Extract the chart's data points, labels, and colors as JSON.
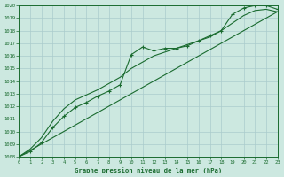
{
  "title": "Graphe pression niveau de la mer (hPa)",
  "xlim": [
    0,
    23
  ],
  "ylim": [
    1008,
    1020
  ],
  "yticks": [
    1008,
    1009,
    1010,
    1011,
    1012,
    1013,
    1014,
    1015,
    1016,
    1017,
    1018,
    1019,
    1020
  ],
  "xticks": [
    0,
    1,
    2,
    3,
    4,
    5,
    6,
    7,
    8,
    9,
    10,
    11,
    12,
    13,
    14,
    15,
    16,
    17,
    18,
    19,
    20,
    21,
    22,
    23
  ],
  "background_color": "#cce8e0",
  "grid_color": "#aacccc",
  "line_color": "#1a6b2f",
  "line1_x": [
    0,
    1,
    2,
    3,
    4,
    5,
    6,
    7,
    8,
    9,
    10,
    11,
    12,
    13,
    14,
    15,
    16,
    17,
    18,
    19,
    20,
    21,
    22,
    23
  ],
  "line1_y": [
    1008.0,
    1008.4,
    1009.1,
    1010.3,
    1011.2,
    1011.9,
    1012.3,
    1012.8,
    1013.2,
    1013.7,
    1016.1,
    1016.7,
    1016.4,
    1016.6,
    1016.6,
    1016.8,
    1017.2,
    1017.6,
    1018.0,
    1019.3,
    1019.8,
    1020.0,
    1020.0,
    1019.7
  ],
  "line2_x": [
    0,
    1,
    2,
    3,
    4,
    5,
    6,
    7,
    8,
    9,
    10,
    11,
    12,
    13,
    14,
    15,
    16,
    17,
    18,
    19,
    20,
    21,
    22,
    23
  ],
  "line2_y": [
    1008.0,
    1008.6,
    1009.5,
    1010.8,
    1011.8,
    1012.5,
    1012.9,
    1013.3,
    1013.8,
    1014.3,
    1015.0,
    1015.5,
    1016.0,
    1016.3,
    1016.6,
    1016.9,
    1017.2,
    1017.5,
    1018.0,
    1018.6,
    1019.2,
    1019.6,
    1019.7,
    1019.5
  ],
  "line3_x": [
    0,
    23
  ],
  "line3_y": [
    1008.0,
    1019.5
  ]
}
